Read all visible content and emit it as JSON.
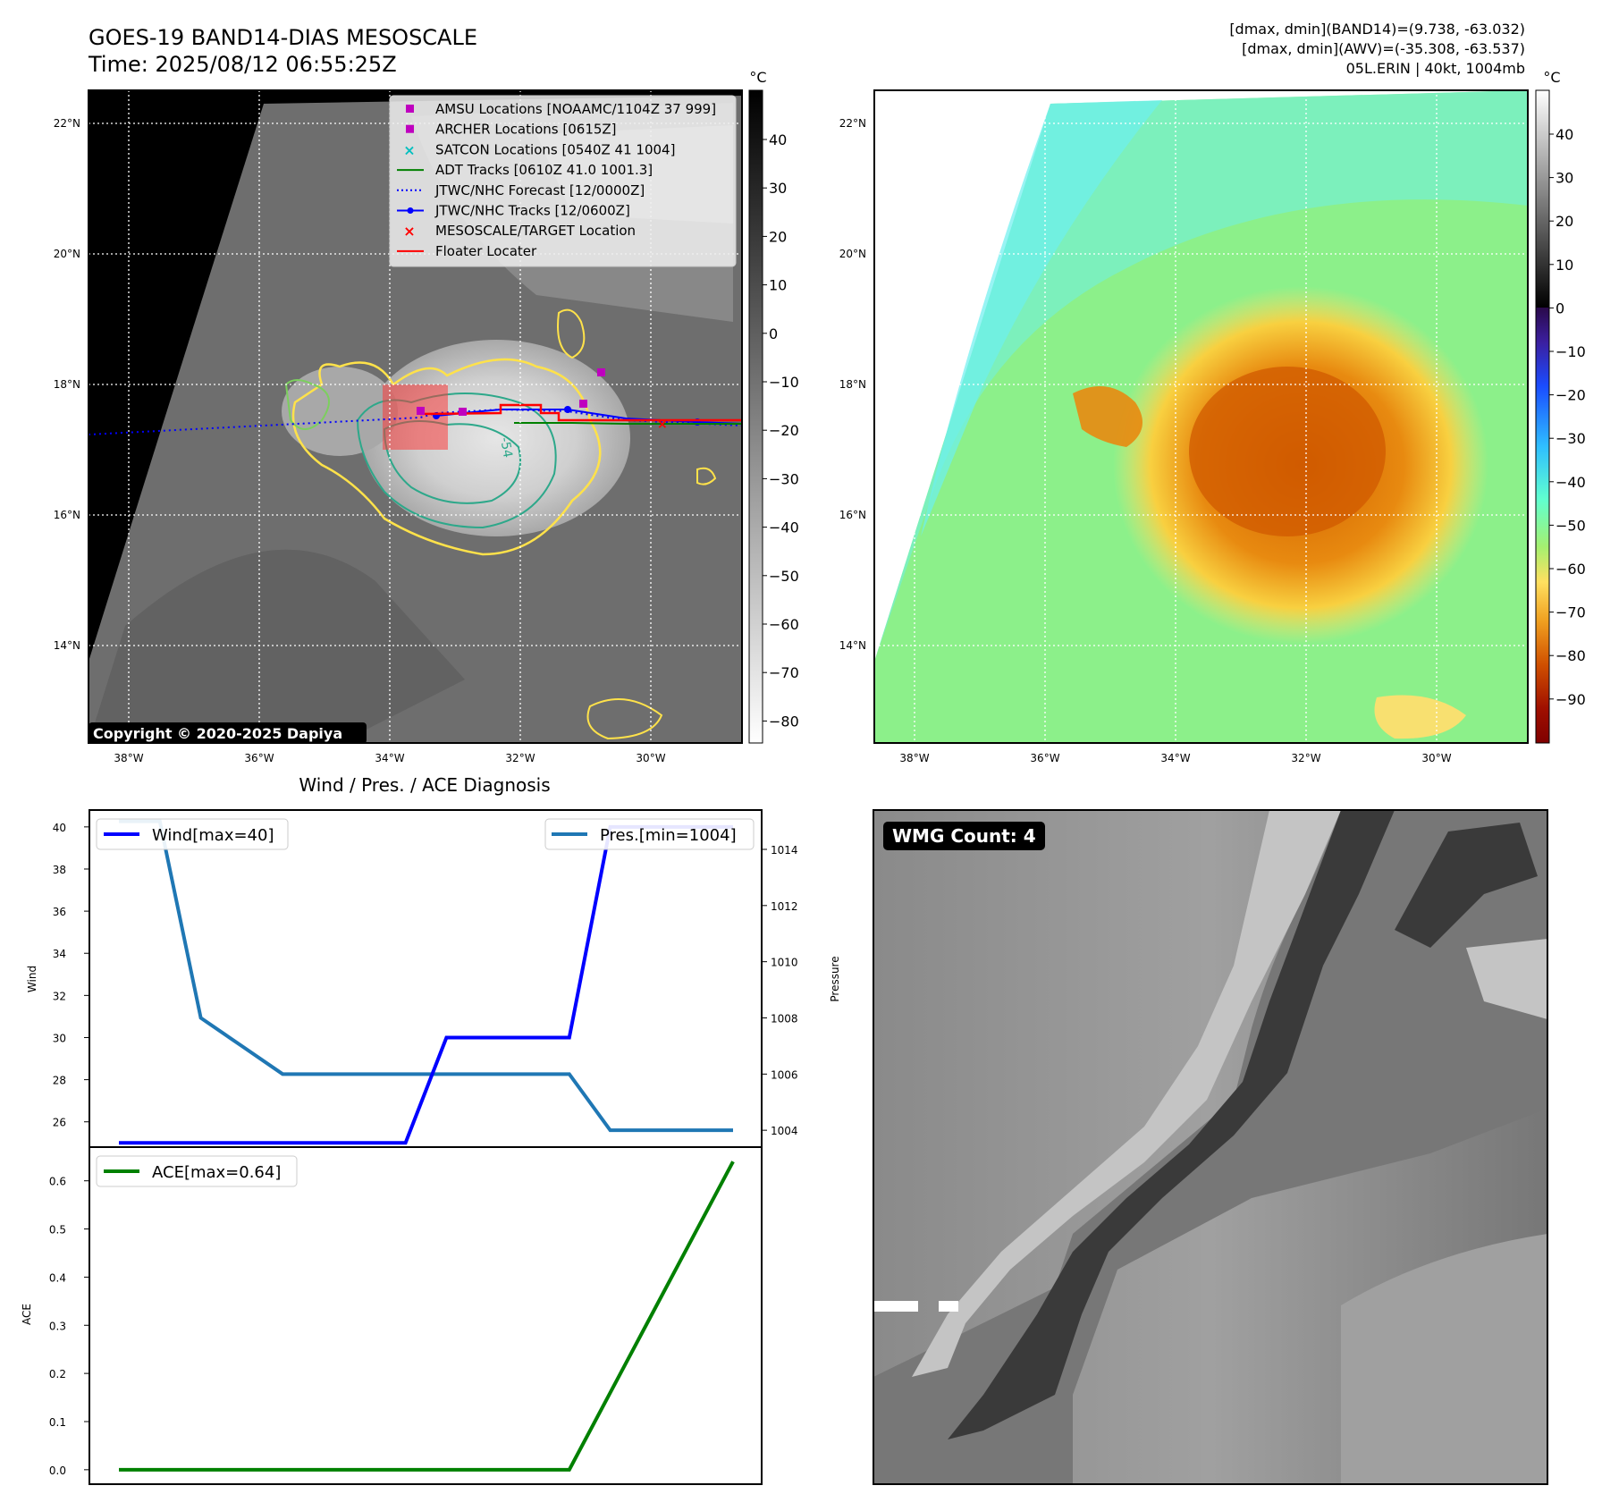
{
  "header": {
    "title": "GOES-19 BAND14-DIAS MESOSCALE",
    "time": "Time: 2025/08/12 06:55:25Z",
    "dmax_band14": "[dmax, dmin](BAND14)=(9.738, -63.032)",
    "dmax_awv": "[dmax, dmin](AWV)=(-35.308, -63.537)",
    "storm": "05L.ERIN | 40kt, 1004mb"
  },
  "map": {
    "lat_labels": [
      "22°N",
      "20°N",
      "18°N",
      "16°N",
      "14°N"
    ],
    "lon_labels": [
      "38°W",
      "36°W",
      "34°W",
      "32°W",
      "30°W"
    ],
    "copyright": "Copyright © 2020-2025 Dapiya",
    "contour_label": "-54",
    "legend": [
      {
        "label": "AMSU Locations [NOAAMC/1104Z 37 999]",
        "marker": "square",
        "color": "#bf00bf"
      },
      {
        "label": "ARCHER Locations [0615Z]",
        "marker": "square",
        "color": "#bf00bf"
      },
      {
        "label": "SATCON Locations [0540Z 41 1004]",
        "marker": "x",
        "color": "#00bfbf"
      },
      {
        "label": "ADT Tracks [0610Z 41.0 1001.3]",
        "marker": "line",
        "color": "#008000"
      },
      {
        "label": "JTWC/NHC Forecast [12/0000Z]",
        "marker": "dotted",
        "color": "#0000ff"
      },
      {
        "label": "JTWC/NHC Tracks [12/0600Z]",
        "marker": "line-dot",
        "color": "#0000ff"
      },
      {
        "label": "MESOSCALE/TARGET Location",
        "marker": "x",
        "color": "#ff0000"
      },
      {
        "label": "Floater Locater",
        "marker": "line",
        "color": "#ff0000"
      }
    ],
    "colorbar1": {
      "unit": "°C",
      "ticks": [
        "40",
        "30",
        "20",
        "10",
        "0",
        "−10",
        "−20",
        "−30",
        "−40",
        "−50",
        "−60",
        "−70",
        "−80"
      ]
    },
    "colorbar2": {
      "unit": "°C",
      "ticks": [
        "40",
        "30",
        "20",
        "10",
        "0",
        "−10",
        "−20",
        "−30",
        "−40",
        "−50",
        "−60",
        "−70",
        "−80",
        "−90"
      ]
    }
  },
  "wmg": {
    "badge": "WMG Count: 4"
  },
  "chart_data": [
    {
      "type": "line",
      "title": "Wind / Pres. / ACE Diagnosis",
      "ylabel": "Wind",
      "y2label": "Pressure",
      "ylim": [
        24.8,
        40.8
      ],
      "y2lim": [
        1003.4,
        1015.4
      ],
      "yticks": [
        26,
        28,
        30,
        32,
        34,
        36,
        38,
        40
      ],
      "y2ticks": [
        1004,
        1006,
        1008,
        1010,
        1012,
        1014
      ],
      "x": [
        0,
        1,
        2,
        3,
        4,
        5,
        6,
        7,
        8,
        9,
        10,
        11,
        12,
        13,
        14,
        15
      ],
      "series": [
        {
          "name": "Wind[max=40]",
          "axis": "left",
          "color": "#0000ff",
          "values": [
            25,
            25,
            25,
            25,
            25,
            25,
            25,
            25,
            30,
            30,
            30,
            30,
            40,
            40,
            40,
            40
          ]
        },
        {
          "name": "Pres.[min=1004]",
          "axis": "right",
          "color": "#1f77b4",
          "values": [
            1015,
            1015,
            1008,
            1007,
            1006,
            1006,
            1006,
            1006,
            1006,
            1006,
            1006,
            1006,
            1004,
            1004,
            1004,
            1004
          ]
        }
      ]
    },
    {
      "type": "line",
      "ylabel": "ACE",
      "ylim": [
        -0.03,
        0.67
      ],
      "yticks": [
        "0.0",
        "0.1",
        "0.2",
        "0.3",
        "0.4",
        "0.5",
        "0.6"
      ],
      "x": [
        0,
        1,
        2,
        3,
        4,
        5,
        6,
        7,
        8,
        9,
        10,
        11,
        12,
        13,
        14,
        15
      ],
      "series": [
        {
          "name": "ACE[max=0.64]",
          "color": "#008000",
          "values": [
            0,
            0,
            0,
            0,
            0,
            0,
            0,
            0,
            0,
            0,
            0,
            0,
            0.16,
            0.32,
            0.48,
            0.64
          ]
        }
      ]
    }
  ]
}
